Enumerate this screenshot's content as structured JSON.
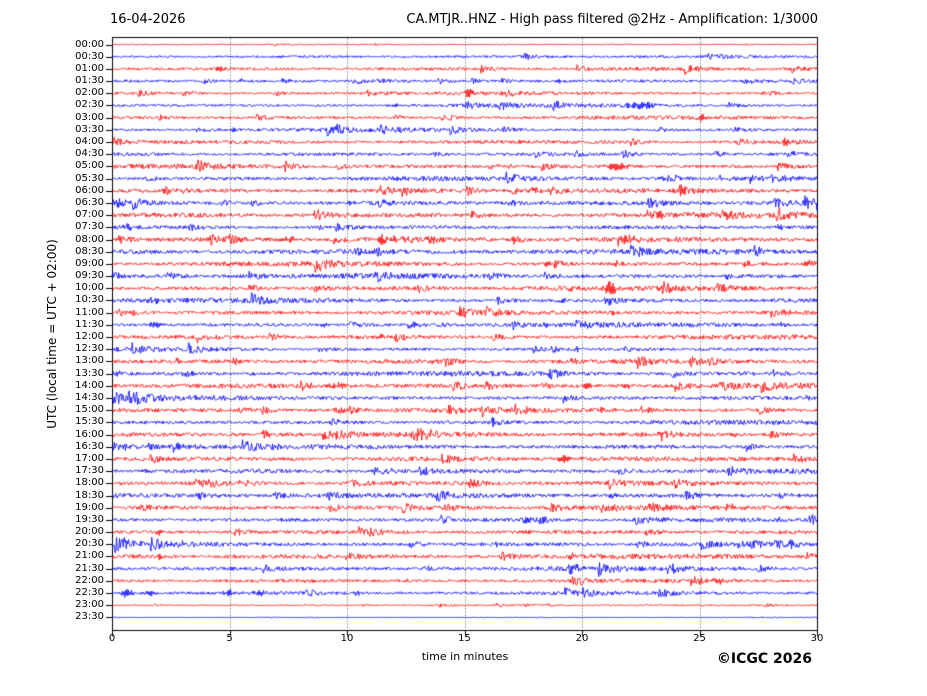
{
  "header": {
    "date": "16-04-2026",
    "title": "CA.MTJR..HNZ - High pass filtered @2Hz - Amplification: 1/3000"
  },
  "footer": {
    "copyright": "©ICGC 2026"
  },
  "chart_data": {
    "type": "line",
    "subtype": "helicorder-daily-seismogram",
    "title": "CA.MTJR..HNZ - High pass filtered @2Hz - Amplification: 1/3000",
    "date": "16-04-2026",
    "xlabel": "time in minutes",
    "ylabel": "UTC (local time = UTC + 02:00)",
    "xlim": [
      0,
      30
    ],
    "x_ticks": [
      0,
      5,
      10,
      15,
      20,
      25,
      30
    ],
    "grid_minutes": [
      5,
      10,
      15,
      20,
      25
    ],
    "grid_style": "vertical dotted lines",
    "legend": "none",
    "colors": {
      "even_row": "#ff0000",
      "odd_row": "#0000ff",
      "frame": "#000000",
      "grid": "#555555"
    },
    "row_minutes_span": 30,
    "rows": [
      {
        "time": "00:00",
        "color": "red",
        "noise": 0.25,
        "events": []
      },
      {
        "time": "00:30",
        "color": "blue",
        "noise": 0.85,
        "events": []
      },
      {
        "time": "01:00",
        "color": "red",
        "noise": 1.0,
        "events": [
          [
            4.6,
            2,
            6
          ]
        ]
      },
      {
        "time": "01:30",
        "color": "blue",
        "noise": 0.9,
        "events": [
          [
            19.0,
            1.8,
            5
          ]
        ]
      },
      {
        "time": "02:00",
        "color": "red",
        "noise": 0.9,
        "events": [
          [
            15.2,
            3.8,
            5
          ]
        ]
      },
      {
        "time": "02:30",
        "color": "blue",
        "noise": 1.0,
        "events": [
          [
            12.0,
            1.6,
            5
          ],
          [
            22.6,
            3.0,
            16
          ]
        ]
      },
      {
        "time": "03:00",
        "color": "red",
        "noise": 1.0,
        "events": [
          [
            25.1,
            3.5,
            4
          ]
        ]
      },
      {
        "time": "03:30",
        "color": "blue",
        "noise": 1.0,
        "events": [
          [
            5.2,
            2.0,
            5
          ]
        ]
      },
      {
        "time": "04:00",
        "color": "red",
        "noise": 1.0,
        "events": []
      },
      {
        "time": "04:30",
        "color": "blue",
        "noise": 1.0,
        "events": [
          [
            28.0,
            1.6,
            4
          ]
        ]
      },
      {
        "time": "05:00",
        "color": "red",
        "noise": 1.2,
        "events": [
          [
            7.3,
            1.6,
            5
          ],
          [
            16.9,
            1.6,
            4
          ],
          [
            21.5,
            4.0,
            12
          ]
        ]
      },
      {
        "time": "05:30",
        "color": "blue",
        "noise": 1.2,
        "events": [
          [
            23.5,
            1.5,
            4
          ]
        ]
      },
      {
        "time": "06:00",
        "color": "red",
        "noise": 1.3,
        "events": [
          [
            3.0,
            1.5,
            5
          ]
        ]
      },
      {
        "time": "06:30",
        "color": "blue",
        "noise": 1.4,
        "events": [
          [
            0.3,
            3.5,
            7
          ],
          [
            10.1,
            1.6,
            4
          ]
        ]
      },
      {
        "time": "07:00",
        "color": "red",
        "noise": 1.4,
        "events": [
          [
            10.0,
            1.5,
            4
          ],
          [
            23.3,
            1.8,
            4
          ],
          [
            25.9,
            1.8,
            4
          ],
          [
            28.2,
            1.6,
            4
          ]
        ]
      },
      {
        "time": "07:30",
        "color": "blue",
        "noise": 1.2,
        "events": [
          [
            0.7,
            2.2,
            5
          ],
          [
            8.8,
            1.8,
            5
          ],
          [
            28.4,
            2.2,
            5
          ]
        ]
      },
      {
        "time": "08:00",
        "color": "red",
        "noise": 1.4,
        "events": [
          [
            7.6,
            2.8,
            6
          ],
          [
            11.5,
            4.5,
            5
          ],
          [
            12.0,
            2.6,
            4
          ],
          [
            13.7,
            2.6,
            9
          ],
          [
            22.0,
            2.6,
            9
          ]
        ]
      },
      {
        "time": "08:30",
        "color": "blue",
        "noise": 1.4,
        "events": [
          [
            10.5,
            1.8,
            6
          ],
          [
            19.0,
            1.6,
            5
          ]
        ]
      },
      {
        "time": "09:00",
        "color": "red",
        "noise": 1.3,
        "events": [
          [
            18.5,
            2.0,
            5
          ],
          [
            29.5,
            2.5,
            4
          ]
        ]
      },
      {
        "time": "09:30",
        "color": "blue",
        "noise": 1.3,
        "events": [
          [
            10.2,
            1.8,
            5
          ]
        ]
      },
      {
        "time": "10:00",
        "color": "red",
        "noise": 1.3,
        "events": [
          [
            19.5,
            1.8,
            5
          ],
          [
            21.15,
            9,
            3
          ],
          [
            21.35,
            5,
            2
          ]
        ]
      },
      {
        "time": "10:30",
        "color": "blue",
        "noise": 1.3,
        "events": [
          [
            1.8,
            2.2,
            6
          ],
          [
            19.2,
            1.8,
            5
          ],
          [
            21.1,
            2.0,
            3
          ]
        ]
      },
      {
        "time": "11:00",
        "color": "red",
        "noise": 1.2,
        "events": [
          [
            21.3,
            1.5,
            4
          ]
        ]
      },
      {
        "time": "11:30",
        "color": "blue",
        "noise": 1.2,
        "events": [
          [
            1.8,
            2.4,
            6
          ],
          [
            9.0,
            1.8,
            5
          ],
          [
            18.6,
            2.2,
            5
          ],
          [
            28.5,
            1.8,
            4
          ]
        ]
      },
      {
        "time": "12:00",
        "color": "red",
        "noise": 1.2,
        "events": [
          [
            11.5,
            1.5,
            4
          ]
        ]
      },
      {
        "time": "12:30",
        "color": "blue",
        "noise": 1.1,
        "events": [
          [
            19.8,
            1.6,
            4
          ]
        ]
      },
      {
        "time": "13:00",
        "color": "red",
        "noise": 1.3,
        "events": [
          [
            2.8,
            2.2,
            5
          ],
          [
            5.2,
            2.6,
            5
          ],
          [
            13.8,
            1.8,
            5
          ],
          [
            19.6,
            2.0,
            5
          ]
        ]
      },
      {
        "time": "13:30",
        "color": "blue",
        "noise": 1.3,
        "events": [
          [
            0.3,
            2.2,
            5
          ],
          [
            6.0,
            1.5,
            4
          ]
        ]
      },
      {
        "time": "14:00",
        "color": "red",
        "noise": 1.5,
        "events": [
          [
            4.9,
            1.8,
            5
          ],
          [
            9.7,
            2.6,
            9
          ],
          [
            20.2,
            2.6,
            6
          ],
          [
            21.9,
            2.2,
            5
          ],
          [
            26.0,
            1.8,
            5
          ]
        ]
      },
      {
        "time": "14:30",
        "color": "blue",
        "noise": 1.3,
        "events": [
          [
            29.6,
            2.2,
            4
          ]
        ]
      },
      {
        "time": "15:00",
        "color": "red",
        "noise": 1.2,
        "events": [
          [
            20.8,
            1.6,
            4
          ]
        ]
      },
      {
        "time": "15:30",
        "color": "blue",
        "noise": 1.2,
        "events": []
      },
      {
        "time": "16:00",
        "color": "red",
        "noise": 1.3,
        "events": [
          [
            23.3,
            1.8,
            4
          ],
          [
            26.5,
            1.6,
            4
          ]
        ]
      },
      {
        "time": "16:30",
        "color": "blue",
        "noise": 1.3,
        "events": [
          [
            7.0,
            1.6,
            4
          ]
        ]
      },
      {
        "time": "17:00",
        "color": "red",
        "noise": 1.4,
        "events": [
          [
            19.2,
            2.6,
            7
          ]
        ]
      },
      {
        "time": "17:30",
        "color": "blue",
        "noise": 1.3,
        "events": [
          [
            1.5,
            1.8,
            5
          ]
        ]
      },
      {
        "time": "18:00",
        "color": "red",
        "noise": 1.3,
        "events": []
      },
      {
        "time": "18:30",
        "color": "blue",
        "noise": 1.3,
        "events": [
          [
            21.3,
            1.8,
            5
          ]
        ]
      },
      {
        "time": "19:00",
        "color": "red",
        "noise": 1.3,
        "events": [
          [
            21.4,
            1.6,
            4
          ]
        ]
      },
      {
        "time": "19:30",
        "color": "blue",
        "noise": 1.2,
        "events": [
          [
            28.3,
            2.6,
            5
          ]
        ]
      },
      {
        "time": "20:00",
        "color": "red",
        "noise": 1.2,
        "events": [
          [
            2.0,
            2.8,
            5
          ]
        ]
      },
      {
        "time": "20:30",
        "color": "blue",
        "noise": 1.3,
        "events": [
          [
            0.6,
            2.6,
            6
          ],
          [
            3.0,
            1.8,
            4
          ],
          [
            16.4,
            1.8,
            4
          ]
        ]
      },
      {
        "time": "21:00",
        "color": "red",
        "noise": 1.3,
        "events": [
          [
            2.0,
            2.6,
            4
          ],
          [
            19.6,
            2.4,
            5
          ]
        ]
      },
      {
        "time": "21:30",
        "color": "blue",
        "noise": 1.2,
        "events": [
          [
            26.5,
            1.6,
            4
          ]
        ]
      },
      {
        "time": "22:00",
        "color": "red",
        "noise": 1.0,
        "events": [
          [
            12.5,
            1.8,
            4
          ],
          [
            25.8,
            2.4,
            5
          ]
        ]
      },
      {
        "time": "22:30",
        "color": "blue",
        "noise": 1.0,
        "events": [
          [
            0.6,
            3.8,
            8
          ],
          [
            1.6,
            2.4,
            6
          ],
          [
            5.0,
            3.2,
            6
          ],
          [
            6.3,
            2.8,
            6
          ],
          [
            10.4,
            2.2,
            5
          ]
        ]
      },
      {
        "time": "23:00",
        "color": "red",
        "noise": 0.45,
        "events": []
      },
      {
        "time": "23:30",
        "color": "blue",
        "noise": 0.18,
        "events": []
      }
    ]
  }
}
